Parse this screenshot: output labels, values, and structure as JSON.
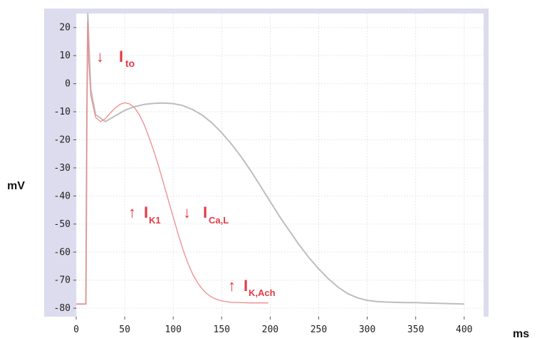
{
  "chart_data": {
    "type": "line",
    "title": "",
    "xlabel": "ms",
    "ylabel": "mV",
    "xlim": [
      0,
      420
    ],
    "ylim": [
      -83,
      25
    ],
    "x_ticks": [
      0,
      50,
      100,
      150,
      200,
      250,
      300,
      350,
      400
    ],
    "y_ticks": [
      20,
      10,
      0,
      -10,
      -20,
      -30,
      -40,
      -50,
      -60,
      -70,
      -80
    ],
    "grid": true,
    "legend": "none",
    "series": [
      {
        "color": "#bdbdbd",
        "x": [
          0,
          10,
          11,
          12,
          13,
          15,
          20,
          30,
          40,
          50,
          60,
          70,
          80,
          90,
          100,
          110,
          120,
          130,
          140,
          150,
          160,
          170,
          180,
          190,
          200,
          210,
          220,
          230,
          240,
          250,
          260,
          270,
          280,
          290,
          300,
          310,
          320,
          330,
          340,
          350,
          360,
          370,
          380,
          390,
          400
        ],
        "y": [
          -78.5,
          -78.5,
          -10,
          25,
          15,
          -2,
          -11,
          -13.5,
          -11.5,
          -9.5,
          -8.2,
          -7.4,
          -7.0,
          -6.9,
          -7.1,
          -7.8,
          -9.2,
          -11.2,
          -14.0,
          -17.5,
          -21.5,
          -26.0,
          -31.0,
          -36.5,
          -42.0,
          -47.5,
          -52.5,
          -57.5,
          -62.0,
          -66.0,
          -69.5,
          -72.5,
          -74.8,
          -76.3,
          -77.2,
          -77.6,
          -77.8,
          -77.9,
          -78.0,
          -78.0,
          -78.1,
          -78.2,
          -78.3,
          -78.4,
          -78.5
        ]
      },
      {
        "color": "#ef8a8a",
        "x": [
          0,
          10,
          11,
          12,
          13,
          15,
          20,
          25,
          30,
          35,
          40,
          45,
          50,
          55,
          60,
          65,
          70,
          75,
          80,
          85,
          90,
          95,
          100,
          105,
          110,
          115,
          120,
          125,
          130,
          135,
          140,
          145,
          150,
          160,
          170,
          180,
          190,
          198
        ],
        "y": [
          -78.5,
          -78.5,
          -10,
          22,
          8,
          -4,
          -12,
          -13.5,
          -12.5,
          -10.5,
          -8.7,
          -7.4,
          -6.8,
          -7.2,
          -8.5,
          -11,
          -14.5,
          -19,
          -24,
          -29.5,
          -35.5,
          -41.5,
          -47.5,
          -53.5,
          -59,
          -63.8,
          -67.8,
          -70.8,
          -73.2,
          -74.9,
          -76.1,
          -76.9,
          -77.4,
          -77.9,
          -78.0,
          -78.1,
          -78.1,
          -78.1
        ]
      }
    ],
    "annotations": [
      {
        "arrow": "↓",
        "main": "I",
        "sub": "to"
      },
      {
        "arrow": "↑",
        "main": "I",
        "sub": "K1"
      },
      {
        "arrow": "↓",
        "main": "I",
        "sub": "Ca,L"
      },
      {
        "arrow": "↑",
        "main": "I",
        "sub": "K,Ach"
      }
    ]
  }
}
